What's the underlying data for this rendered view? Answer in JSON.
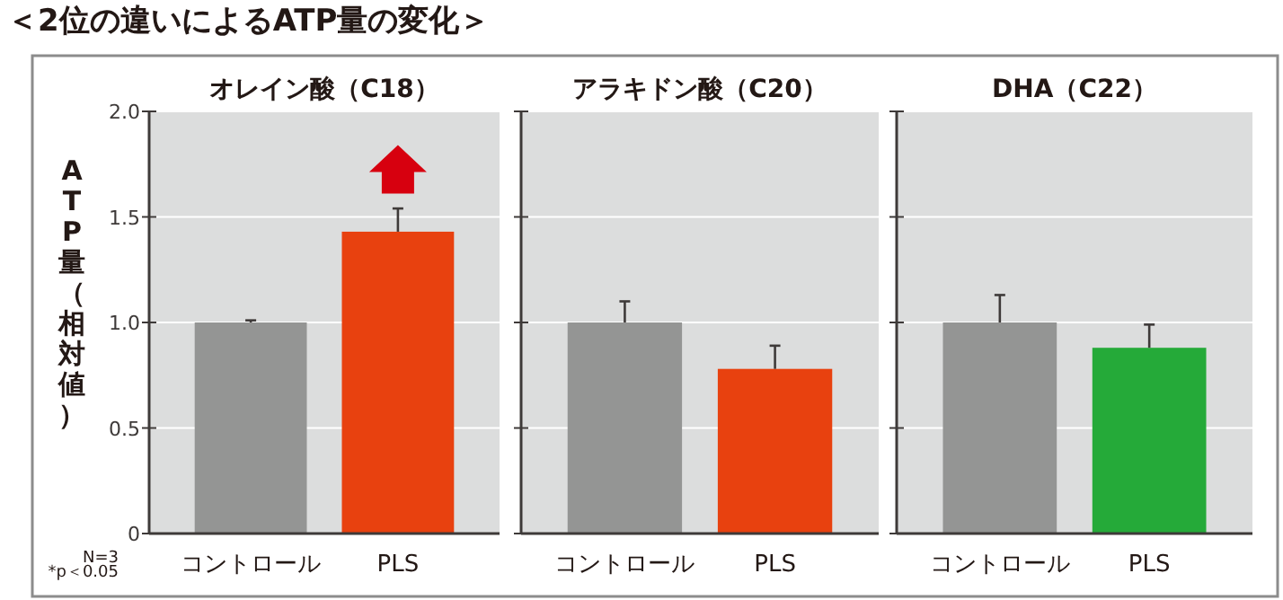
{
  "chart_data": [
    {
      "type": "bar",
      "title": "オレイン酸（C18）",
      "ylabel": "ATP量（相対値）",
      "categories": [
        "コントロール",
        "PLS"
      ],
      "values": [
        1.0,
        1.43
      ],
      "colors": [
        "#949594",
        "#e8410f"
      ],
      "errors": [
        0.01,
        0.11
      ],
      "ylim": [
        0,
        2
      ],
      "yticks": [
        0,
        {
          "value": 0.5,
          "label": "0.5"
        },
        {
          "value": 1,
          "label": "1.0"
        },
        {
          "value": 1.5,
          "label": "1.5"
        },
        {
          "value": 2,
          "label": "2.0"
        }
      ],
      "grid": "y",
      "annotations": [
        "＜2位の違いによるATP量の変化＞",
        "N=3",
        "*p＜0.05"
      ]
    },
    {
      "type": "bar",
      "title": "アラキドン酸（C20）",
      "categories": [
        "コントロール",
        "PLS"
      ],
      "values": [
        1.0,
        0.78
      ],
      "colors": [
        "#949594",
        "#e8410f"
      ],
      "errors": [
        0.1,
        0.11
      ],
      "ylim": [
        0,
        2
      ],
      "yticks": [
        {
          "value": 0,
          "label": null
        },
        {
          "value": 0.5,
          "label": null
        },
        {
          "value": 1,
          "label": null
        },
        {
          "value": 1.5,
          "label": null
        },
        {
          "value": 2,
          "label": null
        }
      ],
      "grid": "y",
      "tick_labels": "x"
    },
    {
      "type": "bar",
      "title": "DHA（C22）",
      "categories": [
        "コントロール",
        "PLS"
      ],
      "values": [
        1.0,
        0.88
      ],
      "colors": [
        "#949594",
        "#25aa39"
      ],
      "errors": [
        0.13,
        0.11
      ],
      "ylim": [
        0,
        2
      ],
      "yticks": [
        {
          "value": 0,
          "label": null
        },
        {
          "value": 0.5,
          "label": null
        },
        {
          "value": 1,
          "label": null
        },
        {
          "value": 1.5,
          "label": null
        },
        {
          "value": 2,
          "label": null
        }
      ],
      "grid": "y",
      "tick_labels": "x"
    }
  ]
}
